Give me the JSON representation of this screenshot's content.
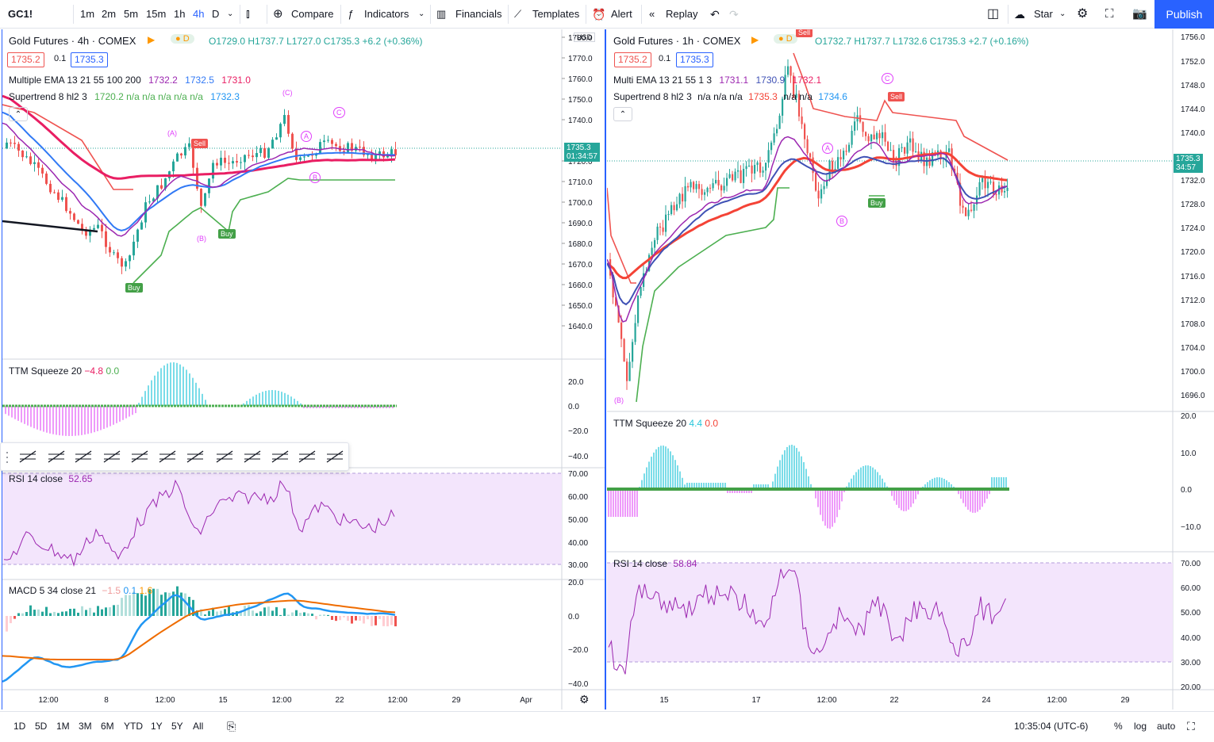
{
  "toolbar": {
    "symbol": "GC1!",
    "intervals": [
      "1m",
      "2m",
      "5m",
      "15m",
      "1h",
      "4h",
      "D"
    ],
    "active_interval": "4h",
    "compare": "Compare",
    "indicators": "Indicators",
    "financials": "Financials",
    "templates": "Templates",
    "alert": "Alert",
    "replay": "Replay",
    "star": "Star",
    "publish": "Publish"
  },
  "left_chart": {
    "title": "Gold Futures · 4h · COMEX",
    "ohlc": "O1729.0 H1737.7 L1727.0 C1735.3 +6.2 (+0.36%)",
    "bid": "1735.2",
    "spread": "0.1",
    "ask": "1735.3",
    "ema_label": "Multiple EMA 13 21 55 100 200",
    "ema_vals": [
      "1732.2",
      "1732.5",
      "1731.0"
    ],
    "st_label": "Supertrend 8 hl2 3",
    "st_vals": "1720.2  n/a  n/a  n/a  n/a  n/a",
    "st_last": "1732.3",
    "currency": "USD",
    "price_label": "1735.3",
    "countdown": "01:34:57",
    "price_ticks": [
      "1780.0",
      "1770.0",
      "1760.0",
      "1750.0",
      "1740.0",
      "1720.0",
      "1710.0",
      "1700.0",
      "1690.0",
      "1680.0",
      "1670.0",
      "1660.0",
      "1650.0",
      "1640.0"
    ],
    "ttm_label": "TTM Squeeze 20",
    "ttm_v1": "−4.8",
    "ttm_v2": "0.0",
    "ttm_ticks": [
      "20.0",
      "0.0",
      "−20.0",
      "−40.0"
    ],
    "rsi_label": "RSI 14 close",
    "rsi_val": "52.65",
    "rsi_ticks": [
      "70.00",
      "60.00",
      "50.00",
      "40.00",
      "30.00"
    ],
    "macd_label": "MACD 5 34 close 21",
    "macd_vals": [
      "−1.5",
      "0.1",
      "1.6"
    ],
    "macd_ticks": [
      "20.0",
      "0.0",
      "−20.0",
      "−40.0"
    ],
    "time_ticks": [
      "12:00",
      "8",
      "12:00",
      "15",
      "12:00",
      "22",
      "12:00",
      "29",
      "Apr"
    ],
    "tags": {
      "a": "(A)",
      "b": "(B)",
      "c": "(C)",
      "A": "A",
      "B": "B",
      "C": "C",
      "sell": "Sell",
      "buy": "Buy"
    }
  },
  "right_chart": {
    "title": "Gold Futures · 1h · COMEX",
    "ohlc": "O1732.7 H1737.7 L1732.6 C1735.3 +2.7 (+0.16%)",
    "bid": "1735.2",
    "spread": "0.1",
    "ask": "1735.3",
    "ema_label": "Multi EMA 13 21 55 1 3",
    "ema_vals": [
      "1731.1",
      "1730.9",
      "1732.1"
    ],
    "st_label": "Supertrend 8 hl2 3",
    "st_vals": "n/a  n/a  n/a",
    "st_red": "1735.3",
    "st_vals2": "n/a  n/a",
    "st_last": "1734.6",
    "price_label": "1735.3",
    "countdown": "34:57",
    "price_ticks": [
      "1756.0",
      "1752.0",
      "1748.0",
      "1744.0",
      "1740.0",
      "1732.0",
      "1728.0",
      "1724.0",
      "1720.0",
      "1716.0",
      "1712.0",
      "1708.0",
      "1704.0",
      "1700.0",
      "1696.0"
    ],
    "ttm_label": "TTM Squeeze 20",
    "ttm_v1": "4.4",
    "ttm_v2": "0.0",
    "ttm_ticks": [
      "20.0",
      "10.0",
      "0.0",
      "−10.0"
    ],
    "rsi_label": "RSI 14 close",
    "rsi_val": "58.84",
    "rsi_ticks": [
      "70.00",
      "60.00",
      "50.00",
      "40.00",
      "30.00",
      "20.00"
    ],
    "time_ticks": [
      "15",
      "17",
      "12:00",
      "22",
      "24",
      "12:00",
      "29"
    ],
    "tags": {
      "A": "A",
      "B": "B",
      "C": "C",
      "b": "(B)",
      "sell": "Sell",
      "buy": "Buy"
    }
  },
  "bottombar": {
    "ranges": [
      "1D",
      "5D",
      "1M",
      "3M",
      "6M",
      "YTD",
      "1Y",
      "5Y",
      "All"
    ],
    "time": "10:35:04 (UTC-6)",
    "pct": "%",
    "log": "log",
    "auto": "auto"
  },
  "colors": {
    "up": "#26a69a",
    "down": "#ef5350",
    "accent": "#2962ff",
    "ema_pink": "#e91e63",
    "ema_blue": "#3179f5",
    "ema_purple": "#9c27b0",
    "st_green": "#4caf50",
    "st_red": "#f44336"
  }
}
